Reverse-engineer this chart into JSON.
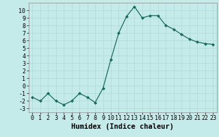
{
  "x": [
    0,
    1,
    2,
    3,
    4,
    5,
    6,
    7,
    8,
    9,
    10,
    11,
    12,
    13,
    14,
    15,
    16,
    17,
    18,
    19,
    20,
    21,
    22,
    23
  ],
  "y": [
    -1.5,
    -2,
    -1,
    -2,
    -2.5,
    -2,
    -1,
    -1.5,
    -2.2,
    -0.3,
    3.5,
    7,
    9.2,
    10.5,
    9,
    9.3,
    9.3,
    8,
    7.5,
    6.8,
    6.2,
    5.8,
    5.6,
    5.5
  ],
  "line_color": "#1a6b5a",
  "marker": "D",
  "marker_size": 2.0,
  "background_color": "#c5eaea",
  "grid_color": "#b0d8d8",
  "xlabel": "Humidex (Indice chaleur)",
  "xlim": [
    -0.5,
    23.5
  ],
  "ylim": [
    -3.5,
    11
  ],
  "yticks": [
    -3,
    -2,
    -1,
    0,
    1,
    2,
    3,
    4,
    5,
    6,
    7,
    8,
    9,
    10
  ],
  "xticks": [
    0,
    1,
    2,
    3,
    4,
    5,
    6,
    7,
    8,
    9,
    10,
    11,
    12,
    13,
    14,
    15,
    16,
    17,
    18,
    19,
    20,
    21,
    22,
    23
  ],
  "xlabel_fontsize": 7.5,
  "tick_fontsize": 6.0
}
